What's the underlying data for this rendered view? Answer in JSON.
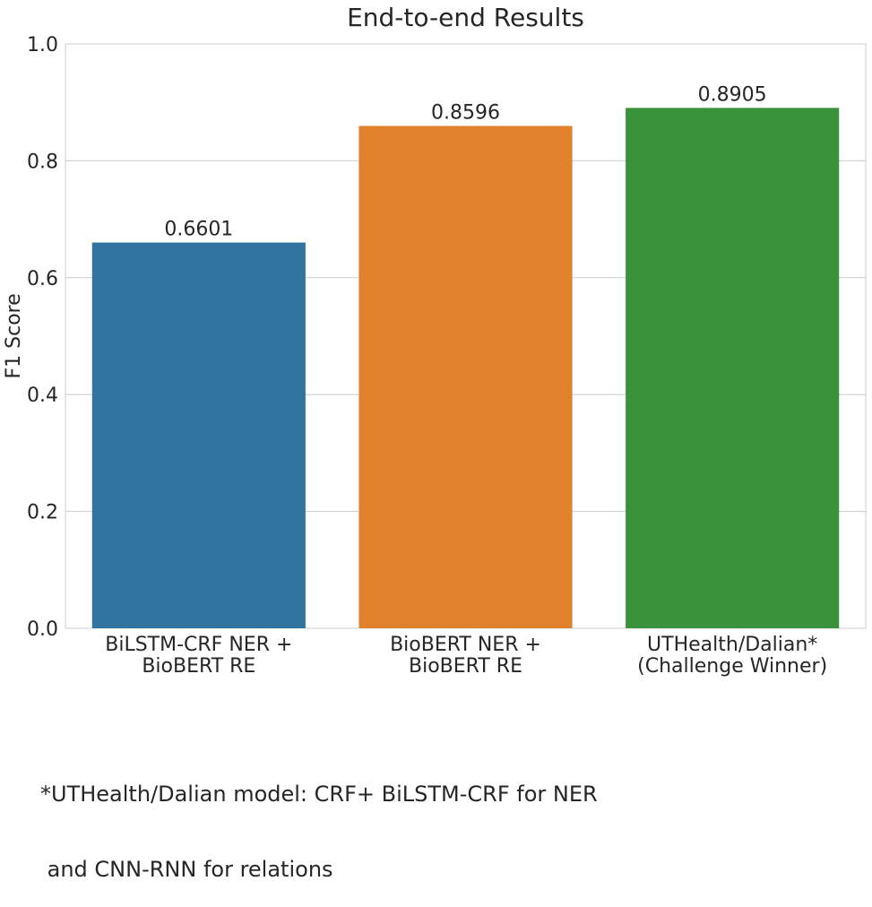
{
  "chart_data": {
    "type": "bar",
    "title": "End-to-end Results",
    "xlabel": "",
    "ylabel": "F1 Score",
    "categories": [
      [
        "BiLSTM-CRF NER +",
        "BioBERT RE"
      ],
      [
        "BioBERT NER +",
        "BioBERT RE"
      ],
      [
        "UTHealth/Dalian*",
        "(Challenge Winner)"
      ]
    ],
    "values": [
      0.6601,
      0.8596,
      0.8905
    ],
    "value_labels": [
      "0.6601",
      "0.8596",
      "0.8905"
    ],
    "colors": [
      "#3274a1",
      "#e1812c",
      "#3a923a"
    ],
    "ylim": [
      0,
      1.0
    ],
    "yticks": [
      0.0,
      0.2,
      0.4,
      0.6,
      0.8,
      1.0
    ],
    "ytick_labels": [
      "0.0",
      "0.2",
      "0.4",
      "0.6",
      "0.8",
      "1.0"
    ],
    "grid": true,
    "legend": "none"
  },
  "footnote": {
    "line1": "*UTHealth/Dalian model: CRF+ BiLSTM-CRF for NER",
    "line2": " and CNN-RNN for relations"
  }
}
